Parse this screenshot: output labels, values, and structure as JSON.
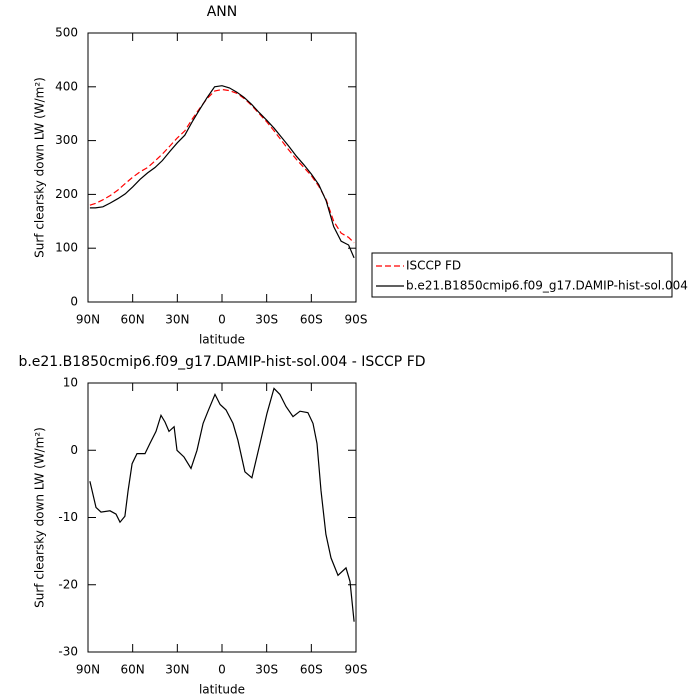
{
  "chart_data": [
    {
      "type": "line",
      "title": "ANN",
      "xlabel": "latitude",
      "ylabel": "Surf clearsky down LW (W/m²)",
      "x": [
        88.7,
        85,
        80,
        75,
        70,
        65,
        60,
        55,
        50,
        45,
        40,
        35,
        30,
        25,
        20,
        15,
        10,
        5,
        0,
        -5,
        -10,
        -15,
        -20,
        -25,
        -30,
        -35,
        -40,
        -45,
        -50,
        -55,
        -60,
        -65,
        -70,
        -75,
        -80,
        -85,
        -88.7
      ],
      "series": [
        {
          "name": "ISCCP FD",
          "color": "#ff0000",
          "dash": true,
          "values": [
            180,
            183,
            190,
            198,
            208,
            220,
            232,
            242,
            250,
            262,
            275,
            290,
            305,
            318,
            340,
            360,
            378,
            392,
            395,
            393,
            388,
            378,
            365,
            350,
            335,
            318,
            300,
            282,
            265,
            250,
            235,
            215,
            190,
            150,
            128,
            120,
            110
          ]
        },
        {
          "name": "b.e21.B1850cmip6.f09_g17.DAMIP-hist-sol.004",
          "color": "#000000",
          "dash": false,
          "values": [
            175,
            175,
            177,
            184,
            192,
            201,
            214,
            228,
            240,
            250,
            263,
            280,
            296,
            310,
            335,
            358,
            380,
            400,
            402,
            398,
            390,
            380,
            367,
            352,
            338,
            323,
            306,
            289,
            271,
            255,
            238,
            218,
            188,
            140,
            113,
            106,
            82
          ]
        }
      ],
      "xlim": [
        90,
        -90
      ],
      "xticks": [
        {
          "value": 90,
          "label": "90N"
        },
        {
          "value": 60,
          "label": "60N"
        },
        {
          "value": 30,
          "label": "30N"
        },
        0,
        {
          "value": -30,
          "label": "30S"
        },
        {
          "value": -60,
          "label": "60S"
        },
        {
          "value": -90,
          "label": "90S"
        }
      ],
      "ylim": [
        0,
        500
      ],
      "yticks": [
        0,
        100,
        200,
        300,
        400,
        500
      ],
      "legend": "right"
    },
    {
      "type": "line",
      "title": "b.e21.B1850cmip6.f09_g17.DAMIP-hist-sol.004 - ISCCP FD",
      "xlabel": "latitude",
      "ylabel": "Surf clearsky down LW (W/m²)",
      "x": [
        88.7,
        84.6,
        81.3,
        75.2,
        71.2,
        68.5,
        65.2,
        63.1,
        60.4,
        57.1,
        51.7,
        48.4,
        44.3,
        41,
        38.3,
        35.6,
        32.2,
        30.2,
        25.5,
        20.8,
        16.8,
        12.7,
        9.4,
        4.7,
        1.3,
        -2.7,
        -7.4,
        -10.7,
        -15.4,
        -20.1,
        -25.5,
        -30.2,
        -34.9,
        -38.9,
        -43,
        -47.7,
        -52.4,
        -57.7,
        -61.1,
        -63.8,
        -66.5,
        -69.8,
        -73.2,
        -77.9,
        -83.3,
        -86,
        -88.7
      ],
      "series": [
        {
          "color": "#000000",
          "dash": false,
          "values": [
            -4.6,
            -8.5,
            -9.2,
            -9,
            -9.5,
            -10.7,
            -9.8,
            -6,
            -2,
            -0.5,
            -0.5,
            1,
            2.8,
            5.2,
            4.2,
            2.8,
            3.5,
            0,
            -1,
            -2.7,
            0,
            4,
            5.8,
            8.3,
            6.8,
            6,
            4,
            1.5,
            -3.2,
            -4.1,
            1,
            5.5,
            9.2,
            8.3,
            6.5,
            5,
            5.8,
            5.6,
            4,
            1,
            -6,
            -12.5,
            -16,
            -18.6,
            -17.5,
            -19.5,
            -25.5
          ]
        }
      ],
      "xlim": [
        90,
        -90
      ],
      "xticks": [
        {
          "value": 90,
          "label": "90N"
        },
        {
          "value": 60,
          "label": "60N"
        },
        {
          "value": 30,
          "label": "30N"
        },
        0,
        {
          "value": -30,
          "label": "30S"
        },
        {
          "value": -60,
          "label": "60S"
        },
        {
          "value": -90,
          "label": "90S"
        }
      ],
      "ylim": [
        -30,
        10
      ],
      "yticks": [
        -30,
        -20,
        -10,
        0,
        10
      ]
    }
  ]
}
